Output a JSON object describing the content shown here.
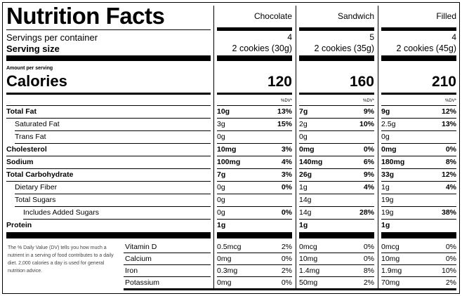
{
  "label": {
    "title": "Nutrition Facts",
    "servings_per_container_label": "Servings per container",
    "serving_size_label": "Serving size",
    "amount_per_serving_label": "Amount per serving",
    "calories_label": "Calories",
    "dv_header": "%DV*",
    "footnote": "The % Daily Value (DV) tells you how much a nutrient in a serving of food contributes to a daily diet. 2,000 calories a day is used for general nutrition advice."
  },
  "products": [
    {
      "name": "Chocolate",
      "servings_per_container": "4",
      "serving_size": "2 cookies (30g)",
      "calories": "120"
    },
    {
      "name": "Sandwich",
      "servings_per_container": "5",
      "serving_size": "2 cookies (35g)",
      "calories": "160"
    },
    {
      "name": "Filled",
      "servings_per_container": "4",
      "serving_size": "2 cookies (45g)",
      "calories": "210"
    }
  ],
  "nutrients": [
    {
      "label": "Total Fat",
      "bold": true,
      "indent": 0,
      "values": [
        {
          "amt": "10g",
          "dv": "13%"
        },
        {
          "amt": "7g",
          "dv": "9%"
        },
        {
          "amt": "9g",
          "dv": "12%"
        }
      ]
    },
    {
      "label": "Saturated Fat",
      "bold": false,
      "indent": 1,
      "values": [
        {
          "amt": "3g",
          "dv": "15%"
        },
        {
          "amt": "2g",
          "dv": "10%"
        },
        {
          "amt": "2.5g",
          "dv": "13%"
        }
      ]
    },
    {
      "label": "Trans Fat",
      "bold": false,
      "indent": 1,
      "values": [
        {
          "amt": "0g",
          "dv": ""
        },
        {
          "amt": "0g",
          "dv": ""
        },
        {
          "amt": "0g",
          "dv": ""
        }
      ]
    },
    {
      "label": "Cholesterol",
      "bold": true,
      "indent": 0,
      "values": [
        {
          "amt": "10mg",
          "dv": "3%"
        },
        {
          "amt": "0mg",
          "dv": "0%"
        },
        {
          "amt": "0mg",
          "dv": "0%"
        }
      ]
    },
    {
      "label": "Sodium",
      "bold": true,
      "indent": 0,
      "values": [
        {
          "amt": "100mg",
          "dv": "4%"
        },
        {
          "amt": "140mg",
          "dv": "6%"
        },
        {
          "amt": "180mg",
          "dv": "8%"
        }
      ]
    },
    {
      "label": "Total Carbohydrate",
      "bold": true,
      "indent": 0,
      "values": [
        {
          "amt": "7g",
          "dv": "3%"
        },
        {
          "amt": "26g",
          "dv": "9%"
        },
        {
          "amt": "33g",
          "dv": "12%"
        }
      ]
    },
    {
      "label": "Dietary Fiber",
      "bold": false,
      "indent": 1,
      "values": [
        {
          "amt": "0g",
          "dv": "0%"
        },
        {
          "amt": "1g",
          "dv": "4%"
        },
        {
          "amt": "1g",
          "dv": "4%"
        }
      ]
    },
    {
      "label": "Total Sugars",
      "bold": false,
      "indent": 1,
      "values": [
        {
          "amt": "0g",
          "dv": ""
        },
        {
          "amt": "14g",
          "dv": ""
        },
        {
          "amt": "19g",
          "dv": ""
        }
      ]
    },
    {
      "label": "Includes Added Sugars",
      "bold": false,
      "indent": 2,
      "values": [
        {
          "amt": "0g",
          "dv": "0%"
        },
        {
          "amt": "14g",
          "dv": "28%"
        },
        {
          "amt": "19g",
          "dv": "38%"
        }
      ]
    },
    {
      "label": "Protein",
      "bold": true,
      "indent": 0,
      "values": [
        {
          "amt": "1g",
          "dv": ""
        },
        {
          "amt": "1g",
          "dv": ""
        },
        {
          "amt": "1g",
          "dv": ""
        }
      ]
    }
  ],
  "vitamins": [
    {
      "label": "Vitamin D",
      "values": [
        {
          "amt": "0.5mcg",
          "dv": "2%"
        },
        {
          "amt": "0mcg",
          "dv": "0%"
        },
        {
          "amt": "0mcg",
          "dv": "0%"
        }
      ]
    },
    {
      "label": "Calcium",
      "values": [
        {
          "amt": "0mg",
          "dv": "0%"
        },
        {
          "amt": "10mg",
          "dv": "0%"
        },
        {
          "amt": "10mg",
          "dv": "0%"
        }
      ]
    },
    {
      "label": "Iron",
      "values": [
        {
          "amt": "0.3mg",
          "dv": "2%"
        },
        {
          "amt": "1.4mg",
          "dv": "8%"
        },
        {
          "amt": "1.9mg",
          "dv": "10%"
        }
      ]
    },
    {
      "label": "Potassium",
      "values": [
        {
          "amt": "0mg",
          "dv": "0%"
        },
        {
          "amt": "50mg",
          "dv": "2%"
        },
        {
          "amt": "70mg",
          "dv": "2%"
        }
      ]
    }
  ]
}
